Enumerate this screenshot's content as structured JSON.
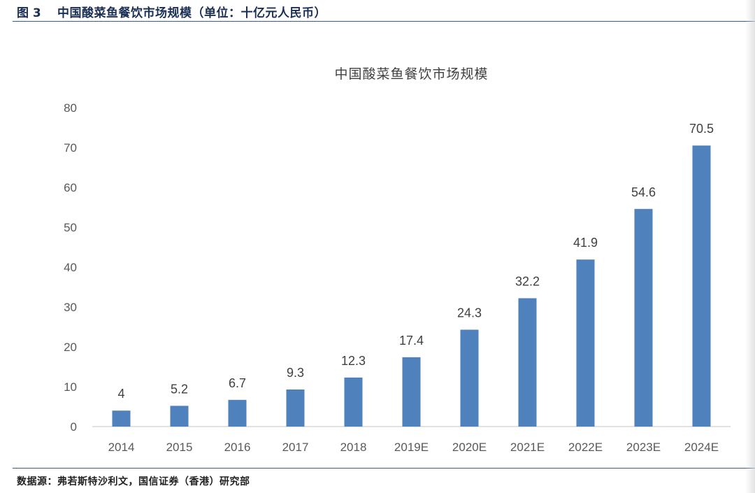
{
  "figure": {
    "number_label": "图 3",
    "title": "中国酸菜鱼餐饮市场规模（单位：十亿元人民币）",
    "source": "数据源：弗若斯特沙利文，国信证券（香港）研究部"
  },
  "colors": {
    "bar": "#4f81bd",
    "header_rule": "#3b5a86",
    "axis_text": "#595959",
    "label_text": "#404040"
  },
  "chart_data": {
    "type": "bar",
    "title": "中国酸菜鱼餐饮市场规模",
    "categories": [
      "2014",
      "2015",
      "2016",
      "2017",
      "2018",
      "2019E",
      "2020E",
      "2021E",
      "2022E",
      "2023E",
      "2024E"
    ],
    "values": [
      4,
      5.2,
      6.7,
      9.3,
      12.3,
      17.4,
      24.3,
      32.2,
      41.9,
      54.6,
      70.5
    ],
    "data_labels": [
      "4",
      "5.2",
      "6.7",
      "9.3",
      "12.3",
      "17.4",
      "24.3",
      "32.2",
      "41.9",
      "54.6",
      "70.5"
    ],
    "y_ticks": [
      "0",
      "10",
      "20",
      "30",
      "40",
      "50",
      "60",
      "70",
      "80"
    ],
    "ylim": [
      0,
      80
    ],
    "xlabel": "",
    "ylabel": "",
    "grid": false,
    "legend": false
  }
}
